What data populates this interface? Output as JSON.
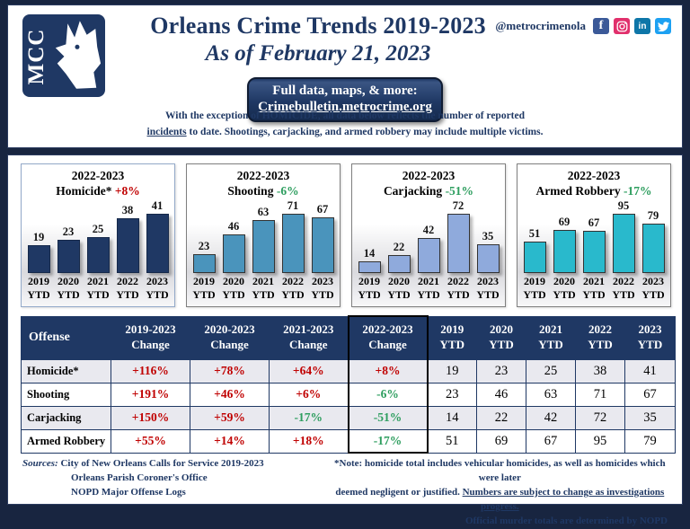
{
  "colors": {
    "navy": "#1f3864",
    "red": "#c00000",
    "green": "#2e9e5f",
    "outer_bg": "#182540"
  },
  "header": {
    "logo_text": "MCC",
    "title": "Orleans Crime Trends 2019-2023",
    "subtitle": "As of February 21, 2023",
    "link_button": {
      "line1": "Full data, maps, & more:",
      "line2": "Crimebulletin.metrocrime.org"
    },
    "social_handle": "@metrocrimenola",
    "social_icons": [
      "facebook-icon",
      "instagram-icon",
      "linkedin-icon",
      "twitter-icon"
    ],
    "note": {
      "line1": "With the exception of HOMICIDE, all data below reflects the number of reported",
      "line2_underlined": "incidents",
      "line2_rest": " to date.  Shootings, carjacking, and armed robbery may include multiple victims."
    }
  },
  "chart_data": [
    {
      "type": "bar",
      "title": "2022-2023",
      "name": "Homicide*",
      "change_label": "+8%",
      "change_direction": "up",
      "bar_color": "#1f3864",
      "bar_border": "#16294a",
      "categories": [
        "2019\nYTD",
        "2020\nYTD",
        "2021\nYTD",
        "2022\nYTD",
        "2023\nYTD"
      ],
      "values": [
        19,
        23,
        25,
        38,
        41
      ],
      "ylim": [
        0,
        41
      ],
      "grid": false,
      "legend": false
    },
    {
      "type": "bar",
      "title": "2022-2023",
      "name": "Shooting",
      "change_label": "-6%",
      "change_direction": "down",
      "bar_color": "#4a94bc",
      "bar_border": "#333333",
      "categories": [
        "2019\nYTD",
        "2020\nYTD",
        "2021\nYTD",
        "2022\nYTD",
        "2023\nYTD"
      ],
      "values": [
        23,
        46,
        63,
        71,
        67
      ],
      "ylim": [
        0,
        71
      ],
      "grid": false,
      "legend": false
    },
    {
      "type": "bar",
      "title": "2022-2023",
      "name": "Carjacking",
      "change_label": "-51%",
      "change_direction": "down",
      "bar_color": "#8faadc",
      "bar_border": "#333333",
      "categories": [
        "2019\nYTD",
        "2020\nYTD",
        "2021\nYTD",
        "2022\nYTD",
        "2023\nYTD"
      ],
      "values": [
        14,
        22,
        42,
        72,
        35
      ],
      "ylim": [
        0,
        72
      ],
      "grid": false,
      "legend": false
    },
    {
      "type": "bar",
      "title": "2022-2023",
      "name": "Armed Robbery",
      "change_label": "-17%",
      "change_direction": "down",
      "bar_color": "#29b9cc",
      "bar_border": "#333333",
      "categories": [
        "2019\nYTD",
        "2020\nYTD",
        "2021\nYTD",
        "2022\nYTD",
        "2023\nYTD"
      ],
      "values": [
        51,
        69,
        67,
        95,
        79
      ],
      "ylim": [
        0,
        95
      ],
      "grid": false,
      "legend": false
    }
  ],
  "table": {
    "headers": [
      "Offense",
      "2019-2023\nChange",
      "2020-2023\nChange",
      "2021-2023\nChange",
      "2022-2023\nChange",
      "2019\nYTD",
      "2020\nYTD",
      "2021\nYTD",
      "2022\nYTD",
      "2023\nYTD"
    ],
    "highlight_column_index": 4,
    "rows": [
      {
        "offense": "Homicide*",
        "changes": [
          {
            "text": "+116%",
            "dir": "up"
          },
          {
            "text": "+78%",
            "dir": "up"
          },
          {
            "text": "+64%",
            "dir": "up"
          },
          {
            "text": "+8%",
            "dir": "up"
          }
        ],
        "counts": [
          19,
          23,
          25,
          38,
          41
        ]
      },
      {
        "offense": "Shooting",
        "changes": [
          {
            "text": "+191%",
            "dir": "up"
          },
          {
            "text": "+46%",
            "dir": "up"
          },
          {
            "text": "+6%",
            "dir": "up"
          },
          {
            "text": "-6%",
            "dir": "down"
          }
        ],
        "counts": [
          23,
          46,
          63,
          71,
          67
        ]
      },
      {
        "offense": "Carjacking",
        "changes": [
          {
            "text": "+150%",
            "dir": "up"
          },
          {
            "text": "+59%",
            "dir": "up"
          },
          {
            "text": "-17%",
            "dir": "down"
          },
          {
            "text": "-51%",
            "dir": "down"
          }
        ],
        "counts": [
          14,
          22,
          42,
          72,
          35
        ]
      },
      {
        "offense": "Armed Robbery",
        "changes": [
          {
            "text": "+55%",
            "dir": "up"
          },
          {
            "text": "+14%",
            "dir": "up"
          },
          {
            "text": "+18%",
            "dir": "up"
          },
          {
            "text": "-17%",
            "dir": "down"
          }
        ],
        "counts": [
          51,
          69,
          67,
          95,
          79
        ]
      }
    ]
  },
  "footer": {
    "sources_label": "Sources:",
    "sources": [
      "City of New Orleans Calls for Service 2019-2023",
      "Orleans Parish Coroner's Office",
      "NOPD Major Offense Logs"
    ],
    "note_line1": "*Note: homicide total includes vehicular homicides, as well as homicides which were later",
    "note_line2_pre": "deemed negligent or justified. ",
    "note_line2_underlined": "Numbers are subject to change as investigations progress.",
    "note_line3": "Official murder totals are determined by NOPD"
  }
}
